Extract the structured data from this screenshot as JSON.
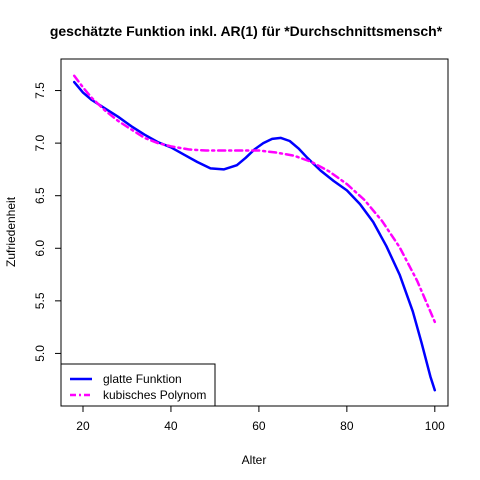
{
  "chart_data": {
    "type": "line",
    "title": "geschätzte Funktion inkl. AR(1) für *Durchschnittsmensch*",
    "xlabel": "Alter",
    "ylabel": "Zufriedenheit",
    "xlim": [
      15,
      103
    ],
    "ylim": [
      4.5,
      7.8
    ],
    "x_ticks": [
      20,
      40,
      60,
      80,
      100
    ],
    "y_ticks": [
      5.0,
      5.5,
      6.0,
      6.5,
      7.0,
      7.5
    ],
    "x_tick_labels": [
      "20",
      "40",
      "60",
      "80",
      "100"
    ],
    "y_tick_labels": [
      "5.0",
      "5.5",
      "6.0",
      "6.5",
      "7.0",
      "7.5"
    ],
    "grid": false,
    "legend_position": "bottom-left",
    "series": [
      {
        "name": "glatte Funktion",
        "color": "#0000ff",
        "line_style": "solid",
        "x": [
          18,
          20,
          22,
          25,
          28,
          31,
          34,
          37,
          40,
          43,
          46,
          49,
          52,
          55,
          57,
          59,
          61,
          63,
          65,
          67,
          69,
          71,
          74,
          77,
          80,
          83,
          86,
          89,
          92,
          95,
          97,
          99,
          100
        ],
        "y": [
          7.58,
          7.48,
          7.41,
          7.33,
          7.25,
          7.16,
          7.08,
          7.01,
          6.96,
          6.89,
          6.82,
          6.76,
          6.75,
          6.79,
          6.86,
          6.94,
          7.0,
          7.04,
          7.05,
          7.02,
          6.95,
          6.86,
          6.74,
          6.64,
          6.55,
          6.42,
          6.25,
          6.02,
          5.75,
          5.4,
          5.1,
          4.78,
          4.65
        ]
      },
      {
        "name": "kubisches Polynom",
        "color": "#ff00ff",
        "line_style": "dashdot",
        "x": [
          18,
          20,
          22,
          25,
          28,
          31,
          34,
          37,
          40,
          44,
          48,
          52,
          56,
          60,
          64,
          68,
          72,
          76,
          80,
          84,
          88,
          92,
          96,
          100
        ],
        "y": [
          7.64,
          7.53,
          7.43,
          7.31,
          7.21,
          7.13,
          7.05,
          7.0,
          6.97,
          6.94,
          6.93,
          6.93,
          6.93,
          6.93,
          6.91,
          6.88,
          6.82,
          6.73,
          6.61,
          6.46,
          6.26,
          6.01,
          5.69,
          5.3
        ]
      }
    ]
  }
}
